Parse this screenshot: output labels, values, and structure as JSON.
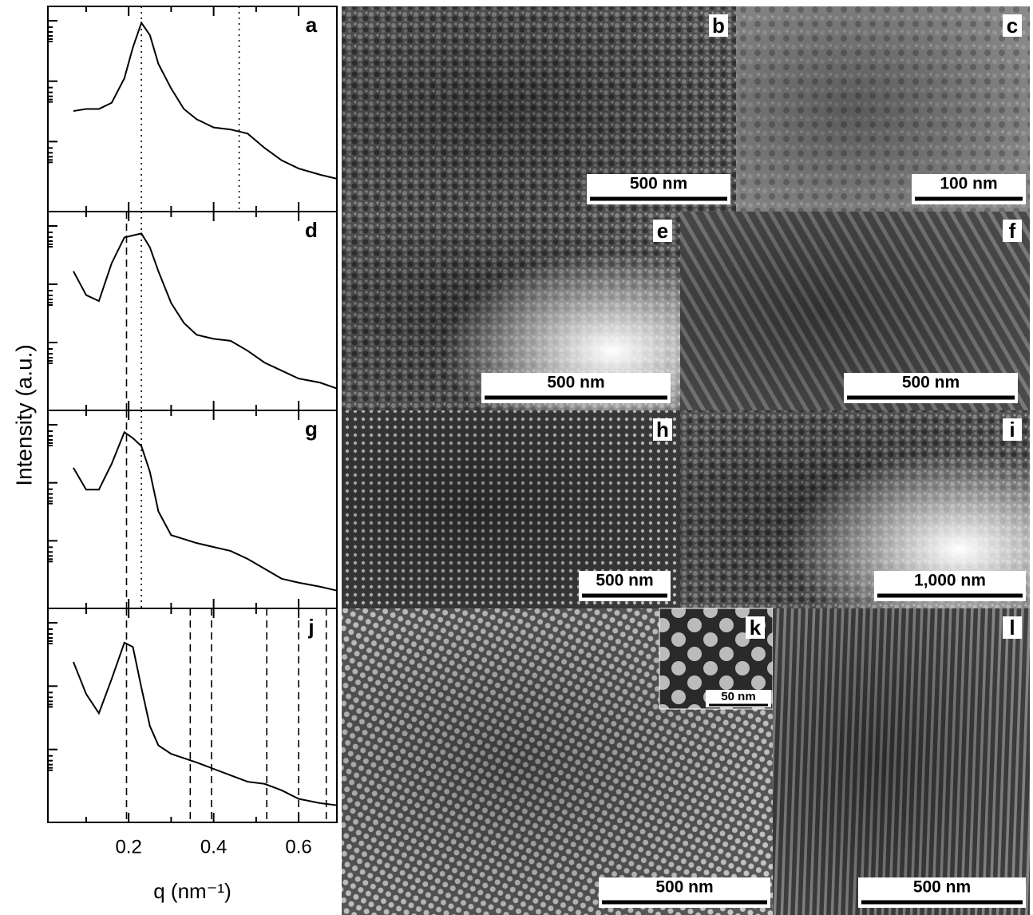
{
  "ylabel": "Intensity (a.u.)",
  "chart_data": [
    {
      "type": "line",
      "title": "a",
      "x": [
        0.07,
        0.1,
        0.13,
        0.16,
        0.19,
        0.21,
        0.23,
        0.25,
        0.27,
        0.3,
        0.33,
        0.36,
        0.4,
        0.44,
        0.48,
        0.52,
        0.56,
        0.6,
        0.65,
        0.69
      ],
      "values": [
        0.49,
        0.5,
        0.5,
        0.53,
        0.65,
        0.8,
        0.92,
        0.86,
        0.72,
        0.6,
        0.5,
        0.45,
        0.41,
        0.4,
        0.38,
        0.31,
        0.25,
        0.21,
        0.18,
        0.16
      ],
      "color": "#000000",
      "xlim": [
        0.01,
        0.69
      ],
      "ylim": [
        0,
        1
      ],
      "xticks": [
        0.2,
        0.4,
        0.6
      ],
      "xminorticks": [
        0.1,
        0.3,
        0.5
      ],
      "tick_labels": false,
      "reference_lines": [
        {
          "value": 0.23,
          "style": "dotted"
        },
        {
          "value": 0.46,
          "style": "dotted"
        }
      ]
    },
    {
      "type": "line",
      "title": "d",
      "x": [
        0.07,
        0.1,
        0.13,
        0.16,
        0.19,
        0.21,
        0.23,
        0.25,
        0.27,
        0.3,
        0.33,
        0.36,
        0.4,
        0.44,
        0.48,
        0.52,
        0.56,
        0.6,
        0.65,
        0.69
      ],
      "values": [
        0.7,
        0.58,
        0.55,
        0.74,
        0.87,
        0.88,
        0.89,
        0.82,
        0.7,
        0.54,
        0.44,
        0.38,
        0.36,
        0.35,
        0.3,
        0.24,
        0.2,
        0.16,
        0.14,
        0.11
      ],
      "color": "#000000",
      "xlim": [
        0.01,
        0.69
      ],
      "ylim": [
        0,
        1
      ],
      "xticks": [
        0.2,
        0.4,
        0.6
      ],
      "xminorticks": [
        0.1,
        0.3,
        0.5
      ],
      "tick_labels": false,
      "reference_lines": [
        {
          "value": 0.195,
          "style": "dashed"
        },
        {
          "value": 0.23,
          "style": "dotted"
        }
      ]
    },
    {
      "type": "line",
      "title": "g",
      "x": [
        0.07,
        0.1,
        0.13,
        0.16,
        0.19,
        0.21,
        0.23,
        0.25,
        0.27,
        0.3,
        0.33,
        0.36,
        0.4,
        0.44,
        0.48,
        0.52,
        0.56,
        0.6,
        0.65,
        0.69
      ],
      "values": [
        0.71,
        0.6,
        0.6,
        0.73,
        0.89,
        0.86,
        0.82,
        0.69,
        0.49,
        0.37,
        0.35,
        0.33,
        0.31,
        0.29,
        0.25,
        0.2,
        0.15,
        0.13,
        0.11,
        0.09
      ],
      "color": "#000000",
      "xlim": [
        0.01,
        0.69
      ],
      "ylim": [
        0,
        1
      ],
      "xticks": [
        0.2,
        0.4,
        0.6
      ],
      "xminorticks": [
        0.1,
        0.3,
        0.5
      ],
      "tick_labels": false,
      "reference_lines": [
        {
          "value": 0.195,
          "style": "dashed"
        },
        {
          "value": 0.23,
          "style": "dotted"
        }
      ]
    },
    {
      "type": "line",
      "title": "j",
      "xlabel": "q (nm⁻¹)",
      "x": [
        0.07,
        0.1,
        0.13,
        0.16,
        0.19,
        0.21,
        0.23,
        0.25,
        0.27,
        0.3,
        0.33,
        0.36,
        0.4,
        0.44,
        0.48,
        0.52,
        0.56,
        0.6,
        0.65,
        0.69
      ],
      "values": [
        0.75,
        0.6,
        0.51,
        0.67,
        0.84,
        0.82,
        0.63,
        0.45,
        0.36,
        0.32,
        0.3,
        0.28,
        0.25,
        0.22,
        0.19,
        0.18,
        0.15,
        0.11,
        0.09,
        0.08
      ],
      "color": "#000000",
      "xlim": [
        0.01,
        0.69
      ],
      "ylim": [
        0,
        1
      ],
      "xticks": [
        0.2,
        0.4,
        0.6
      ],
      "xminorticks": [
        0.1,
        0.3,
        0.5
      ],
      "tick_labels": true,
      "reference_lines": [
        {
          "value": 0.195,
          "style": "dashed"
        },
        {
          "value": 0.345,
          "style": "dashed"
        },
        {
          "value": 0.395,
          "style": "dashed"
        },
        {
          "value": 0.525,
          "style": "dashed"
        },
        {
          "value": 0.6,
          "style": "dashed"
        },
        {
          "value": 0.665,
          "style": "dashed"
        }
      ]
    }
  ],
  "images": [
    {
      "label": "b",
      "scale_bar": "500 nm"
    },
    {
      "label": "c",
      "scale_bar": "100 nm"
    },
    {
      "label": "e",
      "scale_bar": "500 nm"
    },
    {
      "label": "f",
      "scale_bar": "500 nm"
    },
    {
      "label": "h",
      "scale_bar": "500 nm"
    },
    {
      "label": "i",
      "scale_bar": "1,000 nm"
    },
    {
      "label": "k",
      "scale_bar": "500 nm",
      "inset_scale_bar": "50 nm"
    },
    {
      "label": "l",
      "scale_bar": "500 nm"
    }
  ]
}
